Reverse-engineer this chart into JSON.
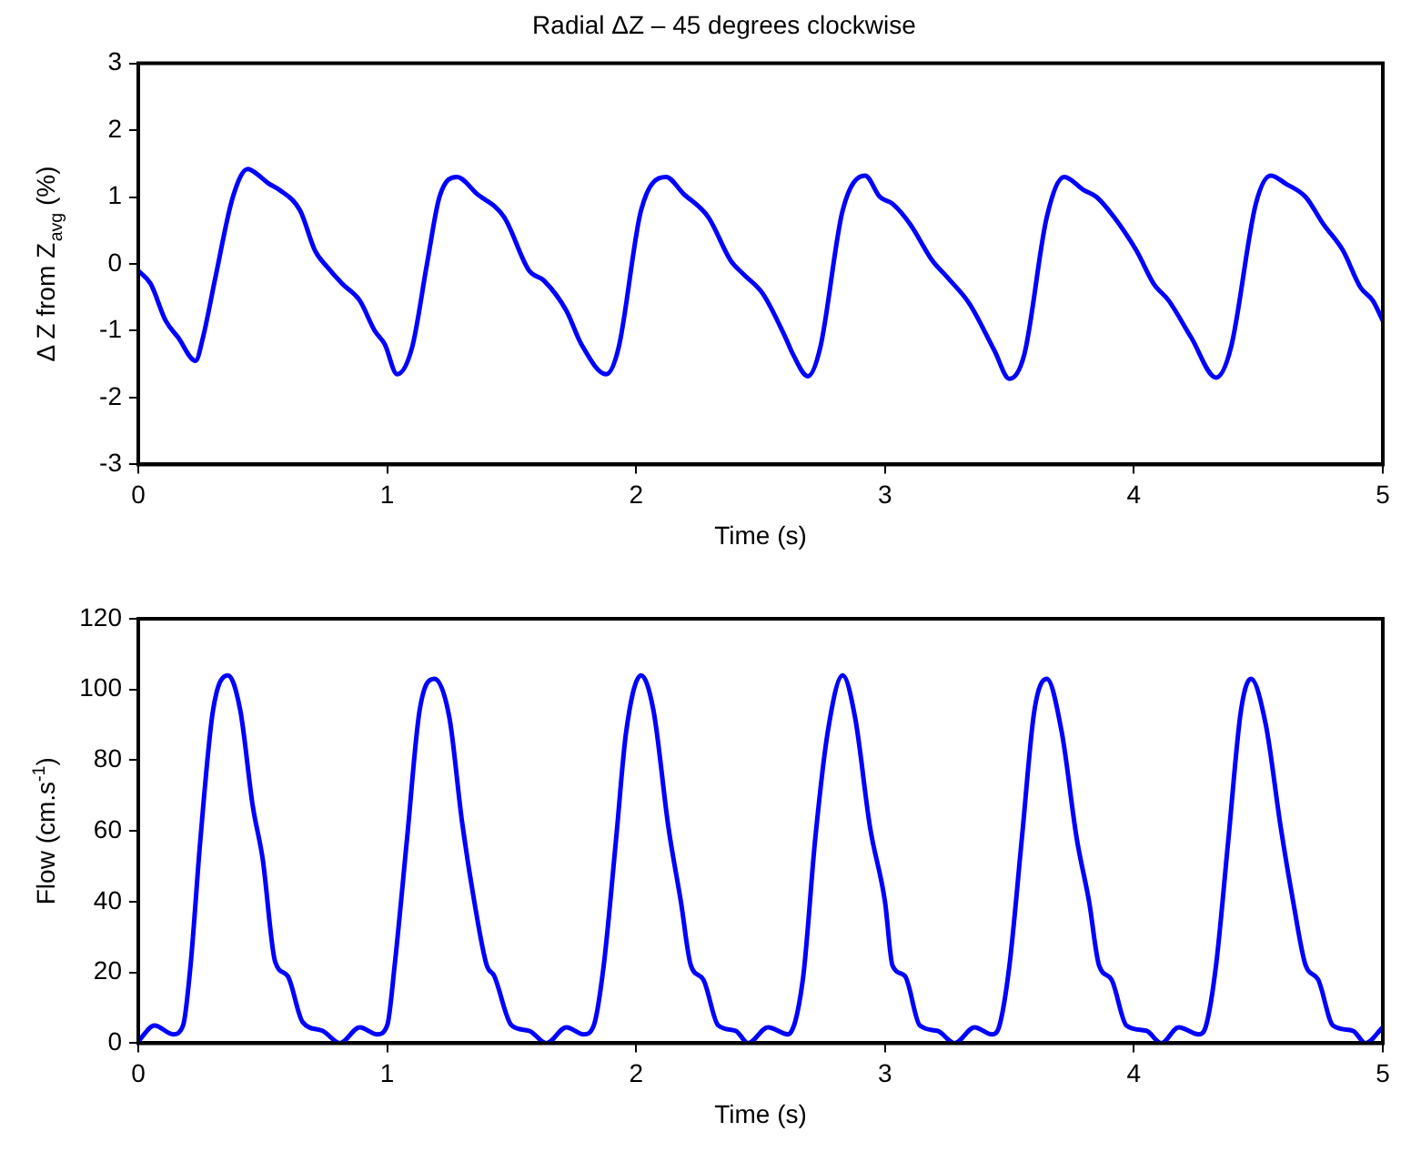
{
  "chart_data": [
    {
      "type": "line",
      "title": "Radial ΔZ – 45 degrees clockwise",
      "xlabel": "Time (s)",
      "ylabel": "Δ Z from Z$_{avg}$ (%)",
      "xlim": [
        0,
        5
      ],
      "xticks": [
        0,
        1,
        2,
        3,
        4,
        5
      ],
      "ylim": [
        -3,
        3
      ],
      "yticks": [
        -3,
        -2,
        -1,
        0,
        1,
        2,
        3
      ],
      "series": [
        {
          "color": "#0000ff",
          "x": [
            0,
            0.05,
            0.11,
            0.16,
            0.23,
            0.26,
            0.31,
            0.38,
            0.44,
            0.475,
            0.525,
            0.57,
            0.65,
            0.71,
            0.76,
            0.82,
            0.89,
            0.95,
            0.99,
            1.04,
            1.1,
            1.16,
            1.21,
            1.28,
            1.36,
            1.47,
            1.57,
            1.63,
            1.72,
            1.78,
            1.88,
            1.93,
            2.02,
            2.12,
            2.19,
            2.29,
            2.38,
            2.43,
            2.51,
            2.6,
            2.63,
            2.69,
            2.74,
            2.83,
            2.92,
            2.98,
            3.03,
            3.1,
            3.19,
            3.25,
            3.34,
            3.44,
            3.5,
            3.56,
            3.65,
            3.72,
            3.8,
            3.85,
            3.92,
            4.01,
            4.08,
            4.14,
            4.23,
            4.33,
            4.39,
            4.49,
            4.55,
            4.61,
            4.69,
            4.76,
            4.84,
            4.91,
            4.96,
            5.0
          ],
          "values": [
            -0.1,
            -0.3,
            -0.85,
            -1.1,
            -1.45,
            -1.1,
            -0.2,
            1.0,
            1.42,
            1.35,
            1.2,
            1.1,
            0.8,
            0.2,
            -0.05,
            -0.3,
            -0.55,
            -1.0,
            -1.2,
            -1.65,
            -1.25,
            0.0,
            1.0,
            1.3,
            1.05,
            0.7,
            -0.1,
            -0.25,
            -0.7,
            -1.2,
            -1.65,
            -1.25,
            0.8,
            1.3,
            1.05,
            0.7,
            0.05,
            -0.15,
            -0.45,
            -1.1,
            -1.35,
            -1.68,
            -1.25,
            0.8,
            1.32,
            1.0,
            0.9,
            0.6,
            0.05,
            -0.2,
            -0.6,
            -1.3,
            -1.72,
            -1.35,
            0.7,
            1.3,
            1.1,
            1.0,
            0.7,
            0.2,
            -0.3,
            -0.55,
            -1.1,
            -1.7,
            -1.25,
            0.9,
            1.32,
            1.2,
            1.0,
            0.6,
            0.2,
            -0.35,
            -0.55,
            -0.85
          ]
        }
      ]
    },
    {
      "type": "line",
      "xlabel": "Time (s)",
      "ylabel": "Flow (cm.s$^{-1}$)",
      "xlim": [
        0,
        5
      ],
      "xticks": [
        0,
        1,
        2,
        3,
        4,
        5
      ],
      "ylim": [
        0,
        120
      ],
      "yticks": [
        0,
        20,
        40,
        60,
        80,
        100,
        120
      ],
      "series": [
        {
          "color": "#0000ff",
          "x": [
            0,
            0.065,
            0.14,
            0.18,
            0.21,
            0.25,
            0.3,
            0.36,
            0.41,
            0.46,
            0.5,
            0.55,
            0.6,
            0.66,
            0.74,
            0.81,
            0.89,
            0.96,
            1.0,
            1.03,
            1.08,
            1.13,
            1.19,
            1.25,
            1.3,
            1.35,
            1.4,
            1.43,
            1.5,
            1.57,
            1.64,
            1.72,
            1.79,
            1.83,
            1.87,
            1.92,
            1.96,
            2.02,
            2.07,
            2.13,
            2.18,
            2.22,
            2.27,
            2.33,
            2.4,
            2.45,
            2.53,
            2.61,
            2.67,
            2.72,
            2.77,
            2.83,
            2.88,
            2.94,
            3.0,
            3.03,
            3.08,
            3.14,
            3.21,
            3.28,
            3.36,
            3.43,
            3.46,
            3.5,
            3.55,
            3.6,
            3.65,
            3.71,
            3.77,
            3.82,
            3.86,
            3.91,
            3.97,
            4.05,
            4.11,
            4.18,
            4.26,
            4.29,
            4.33,
            4.38,
            4.43,
            4.47,
            4.53,
            4.59,
            4.64,
            4.69,
            4.74,
            4.8,
            4.88,
            4.93,
            5.0
          ],
          "values": [
            0.5,
            5,
            2.5,
            5,
            22,
            58,
            94,
            104,
            94,
            67,
            52,
            23,
            19,
            6,
            3.5,
            0,
            4.5,
            2.5,
            5,
            22,
            58,
            94,
            103,
            92,
            63,
            40,
            22,
            19,
            5,
            3.5,
            0,
            4.5,
            2.5,
            5,
            22,
            58,
            88,
            104,
            94,
            61,
            40,
            22,
            18,
            5,
            3.5,
            0,
            4.5,
            2.5,
            18,
            58,
            88,
            104,
            92,
            61,
            40,
            22,
            19,
            5,
            3.5,
            0,
            4.5,
            2.5,
            5,
            22,
            58,
            94,
            103,
            88,
            58,
            40,
            22,
            18,
            5,
            3.5,
            0,
            4.5,
            2.5,
            5,
            22,
            58,
            94,
            103,
            90,
            61,
            40,
            22,
            18,
            5,
            3.5,
            0,
            4.5
          ]
        }
      ]
    }
  ]
}
